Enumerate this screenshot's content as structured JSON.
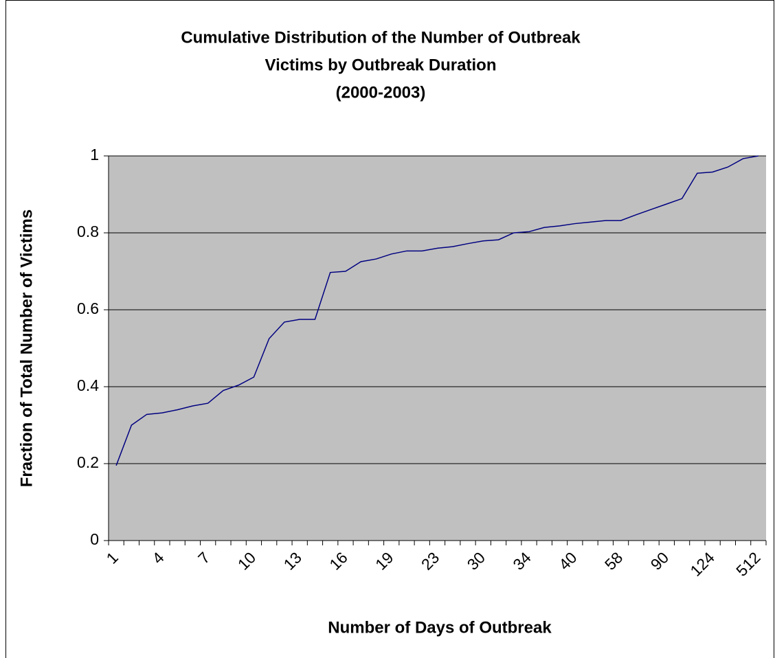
{
  "chart_data": {
    "type": "line",
    "title": [
      "Cumulative Distribution of the Number of Outbreak",
      "Victims by Outbreak Duration",
      "(2000-2003)"
    ],
    "x_label": "Number of Days of Outbreak",
    "y_label": "Fraction of Total  Number of Victims",
    "categories": [
      "1",
      null,
      null,
      "4",
      null,
      null,
      "7",
      null,
      null,
      "10",
      null,
      null,
      "13",
      null,
      null,
      "16",
      null,
      null,
      "19",
      null,
      null,
      "23",
      null,
      null,
      "30",
      null,
      null,
      "34",
      null,
      null,
      "40",
      null,
      null,
      "58",
      null,
      null,
      "90",
      null,
      null,
      "124",
      null,
      null,
      "512"
    ],
    "series": [
      {
        "color": "#000080",
        "values": [
          0.195,
          0.3,
          0.328,
          0.332,
          0.34,
          0.35,
          0.357,
          0.39,
          0.404,
          0.425,
          0.525,
          0.568,
          0.575,
          0.575,
          0.697,
          0.7,
          0.725,
          0.732,
          0.745,
          0.753,
          0.753,
          0.76,
          0.764,
          0.772,
          0.779,
          0.782,
          0.8,
          0.803,
          0.814,
          0.818,
          0.824,
          0.828,
          0.832,
          0.832,
          0.847,
          0.861,
          0.875,
          0.889,
          0.955,
          0.958,
          0.971,
          0.993,
          1.0
        ]
      }
    ],
    "ylim": [
      0,
      1
    ],
    "yticks": [
      0,
      0.2,
      0.4,
      0.6,
      0.8,
      1
    ],
    "grid": true,
    "plot_background": "#c0c0c0"
  }
}
